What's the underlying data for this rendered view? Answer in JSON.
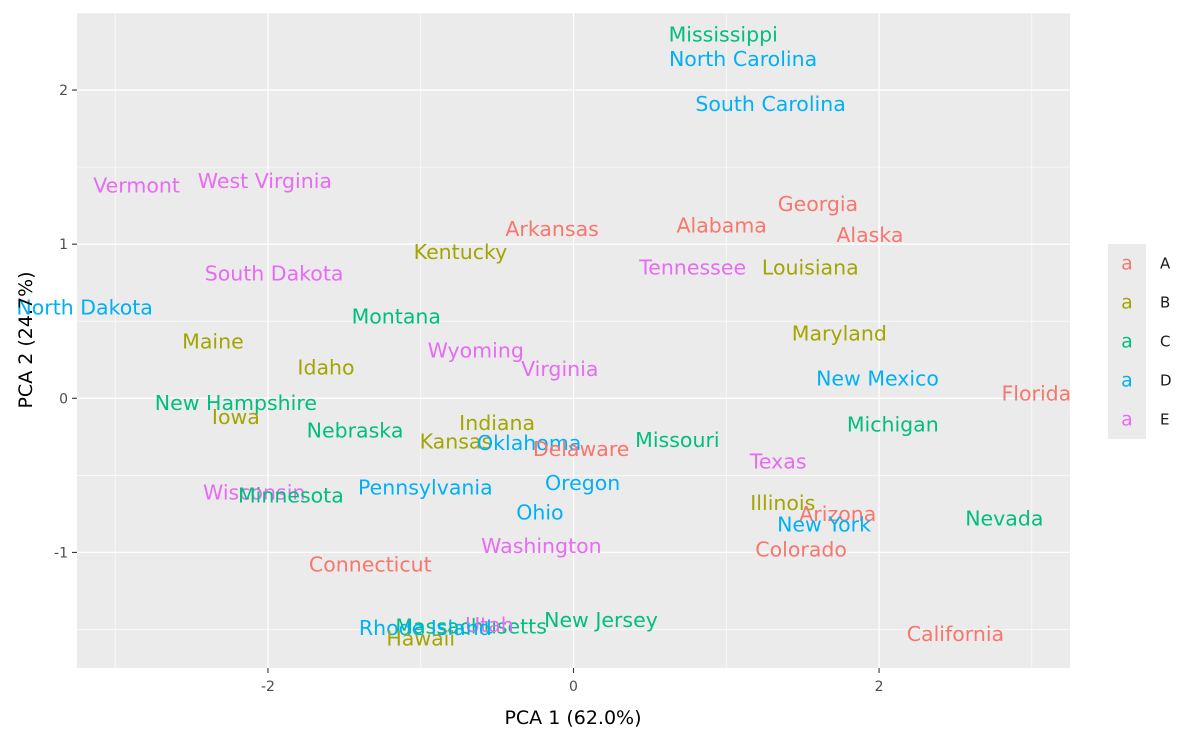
{
  "chart_data": {
    "type": "scatter",
    "title": "",
    "xlabel": "PCA 1 (62.0%)",
    "ylabel": "PCA 2 (24.7%)",
    "xlim": [
      -3.25,
      3.25
    ],
    "ylim": [
      -1.75,
      2.5
    ],
    "xticks": [
      -2,
      0,
      2
    ],
    "yticks": [
      -1,
      0,
      1,
      2
    ],
    "grid": true,
    "legend": {
      "position": "right",
      "key_glyph": "a",
      "entries": [
        {
          "label": "A",
          "color": "#F8766D"
        },
        {
          "label": "B",
          "color": "#A3A500"
        },
        {
          "label": "C",
          "color": "#00BF7D"
        },
        {
          "label": "D",
          "color": "#00B0F6"
        },
        {
          "label": "E",
          "color": "#E76BF3"
        }
      ]
    },
    "points": [
      {
        "label": "Mississippi",
        "group": "C",
        "x": 0.98,
        "y": 2.36
      },
      {
        "label": "North Carolina",
        "group": "D",
        "x": 1.11,
        "y": 2.2
      },
      {
        "label": "South Carolina",
        "group": "D",
        "x": 1.29,
        "y": 1.91
      },
      {
        "label": "Vermont",
        "group": "E",
        "x": -2.86,
        "y": 1.38
      },
      {
        "label": "West Virginia",
        "group": "E",
        "x": -2.02,
        "y": 1.41
      },
      {
        "label": "Georgia",
        "group": "A",
        "x": 1.6,
        "y": 1.26
      },
      {
        "label": "Arkansas",
        "group": "A",
        "x": -0.14,
        "y": 1.1
      },
      {
        "label": "Alabama",
        "group": "A",
        "x": 0.97,
        "y": 1.12
      },
      {
        "label": "Alaska",
        "group": "A",
        "x": 1.94,
        "y": 1.06
      },
      {
        "label": "Kentucky",
        "group": "B",
        "x": -0.74,
        "y": 0.95
      },
      {
        "label": "Tennessee",
        "group": "E",
        "x": 0.78,
        "y": 0.85
      },
      {
        "label": "Louisiana",
        "group": "B",
        "x": 1.55,
        "y": 0.85
      },
      {
        "label": "South Dakota",
        "group": "E",
        "x": -1.96,
        "y": 0.81
      },
      {
        "label": "North Dakota",
        "group": "D",
        "x": -3.2,
        "y": 0.59
      },
      {
        "label": "Montana",
        "group": "C",
        "x": -1.16,
        "y": 0.53
      },
      {
        "label": "Maine",
        "group": "B",
        "x": -2.36,
        "y": 0.37
      },
      {
        "label": "Maryland",
        "group": "B",
        "x": 1.74,
        "y": 0.42
      },
      {
        "label": "Wyoming",
        "group": "E",
        "x": -0.64,
        "y": 0.31
      },
      {
        "label": "Idaho",
        "group": "B",
        "x": -1.62,
        "y": 0.2
      },
      {
        "label": "Virginia",
        "group": "E",
        "x": -0.09,
        "y": 0.19
      },
      {
        "label": "New Mexico",
        "group": "D",
        "x": 1.99,
        "y": 0.13
      },
      {
        "label": "Florida",
        "group": "A",
        "x": 3.03,
        "y": 0.03
      },
      {
        "label": "New Hampshire",
        "group": "C",
        "x": -2.21,
        "y": -0.03
      },
      {
        "label": "Iowa",
        "group": "B",
        "x": -2.21,
        "y": -0.12
      },
      {
        "label": "Indiana",
        "group": "B",
        "x": -0.5,
        "y": -0.16
      },
      {
        "label": "Michigan",
        "group": "C",
        "x": 2.09,
        "y": -0.17
      },
      {
        "label": "Nebraska",
        "group": "C",
        "x": -1.43,
        "y": -0.21
      },
      {
        "label": "Kansas",
        "group": "B",
        "x": -0.77,
        "y": -0.28
      },
      {
        "label": "Oklahoma",
        "group": "D",
        "x": -0.29,
        "y": -0.29
      },
      {
        "label": "Missouri",
        "group": "C",
        "x": 0.68,
        "y": -0.27
      },
      {
        "label": "Delaware",
        "group": "A",
        "x": 0.05,
        "y": -0.33
      },
      {
        "label": "Texas",
        "group": "E",
        "x": 1.34,
        "y": -0.41
      },
      {
        "label": "Wisconsin",
        "group": "E",
        "x": -2.09,
        "y": -0.61
      },
      {
        "label": "Minnesota",
        "group": "C",
        "x": -1.85,
        "y": -0.63
      },
      {
        "label": "Pennsylvania",
        "group": "D",
        "x": -0.97,
        "y": -0.58
      },
      {
        "label": "Oregon",
        "group": "D",
        "x": 0.06,
        "y": -0.55
      },
      {
        "label": "Illinois",
        "group": "B",
        "x": 1.37,
        "y": -0.68
      },
      {
        "label": "Arizona",
        "group": "A",
        "x": 1.73,
        "y": -0.75
      },
      {
        "label": "Nevada",
        "group": "C",
        "x": 2.82,
        "y": -0.78
      },
      {
        "label": "Ohio",
        "group": "D",
        "x": -0.22,
        "y": -0.74
      },
      {
        "label": "New York",
        "group": "D",
        "x": 1.64,
        "y": -0.82
      },
      {
        "label": "Washington",
        "group": "E",
        "x": -0.21,
        "y": -0.96
      },
      {
        "label": "Colorado",
        "group": "A",
        "x": 1.49,
        "y": -0.98
      },
      {
        "label": "Connecticut",
        "group": "A",
        "x": -1.33,
        "y": -1.08
      },
      {
        "label": "New Jersey",
        "group": "C",
        "x": 0.18,
        "y": -1.44
      },
      {
        "label": "Massachusetts",
        "group": "C",
        "x": -0.67,
        "y": -1.48
      },
      {
        "label": "Utah",
        "group": "E",
        "x": -0.55,
        "y": -1.47
      },
      {
        "label": "Rhode Island",
        "group": "D",
        "x": -0.97,
        "y": -1.49
      },
      {
        "label": "California",
        "group": "A",
        "x": 2.5,
        "y": -1.53
      },
      {
        "label": "Hawaii",
        "group": "B",
        "x": -1.0,
        "y": -1.56
      }
    ]
  }
}
